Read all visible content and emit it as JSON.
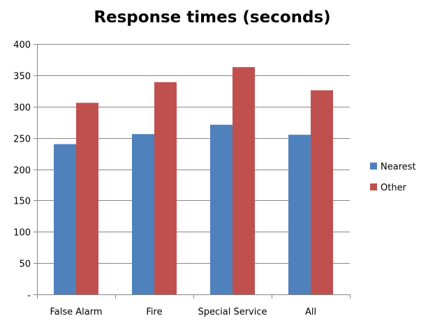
{
  "chart_data": {
    "type": "bar",
    "title": "Response times (seconds)",
    "xlabel": "",
    "ylabel": "",
    "categories": [
      "False Alarm",
      "Fire",
      "Special Service",
      "All"
    ],
    "series": [
      {
        "name": "Nearest",
        "values": [
          240,
          256,
          271,
          255
        ],
        "color": "#4f81bd"
      },
      {
        "name": "Other",
        "values": [
          306,
          339,
          363,
          326
        ],
        "color": "#c0504d"
      }
    ],
    "ylim": [
      0,
      400
    ],
    "yticks": [
      0,
      50,
      100,
      150,
      200,
      250,
      300,
      350,
      400
    ],
    "ytick_labels": [
      "-",
      "50",
      "100",
      "150",
      "200",
      "250",
      "300",
      "350",
      "400"
    ],
    "grid": true,
    "legend_position": "right"
  }
}
